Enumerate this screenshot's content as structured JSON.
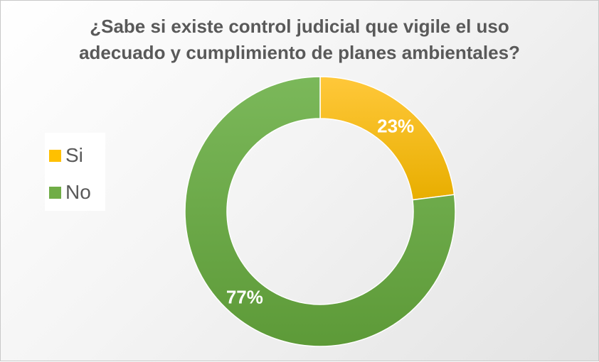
{
  "chart_data": {
    "type": "pie",
    "title": "¿Sabe si existe control judicial que vigile el uso\nadecuado y cumplimiento de planes ambientales?",
    "categories": [
      "Si",
      "No"
    ],
    "values": [
      23,
      77
    ],
    "data_labels": [
      "23%",
      "77%"
    ],
    "colors": [
      "#FFC000",
      "#70AD47"
    ],
    "donut": true,
    "legend_position": "left"
  }
}
